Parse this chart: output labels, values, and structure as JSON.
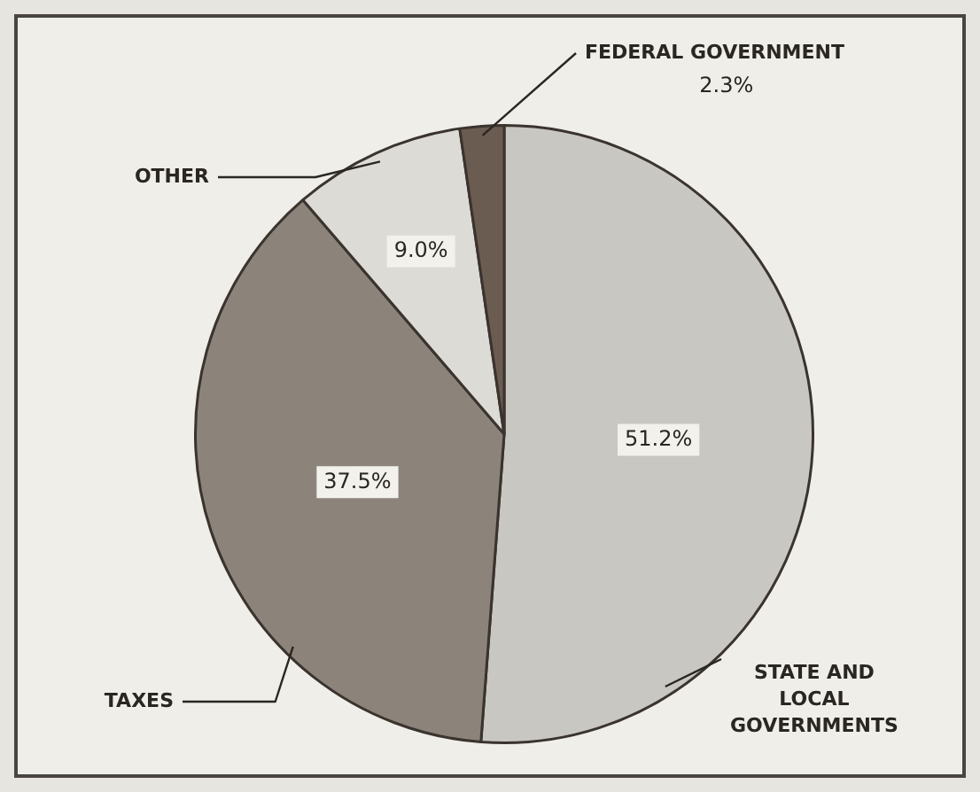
{
  "chart_data": {
    "type": "pie",
    "categories": [
      "STATE AND LOCAL GOVERNMENTS",
      "TAXES",
      "OTHER",
      "FEDERAL GOVERNMENT"
    ],
    "values": [
      51.2,
      37.5,
      9.0,
      2.3
    ],
    "value_labels": [
      "51.2%",
      "37.5%",
      "9.0%",
      "2.3%"
    ],
    "colors": [
      "#c9c7c1",
      "#8c847b",
      "#dddbd5",
      "#6b5c52"
    ],
    "legend": false
  }
}
